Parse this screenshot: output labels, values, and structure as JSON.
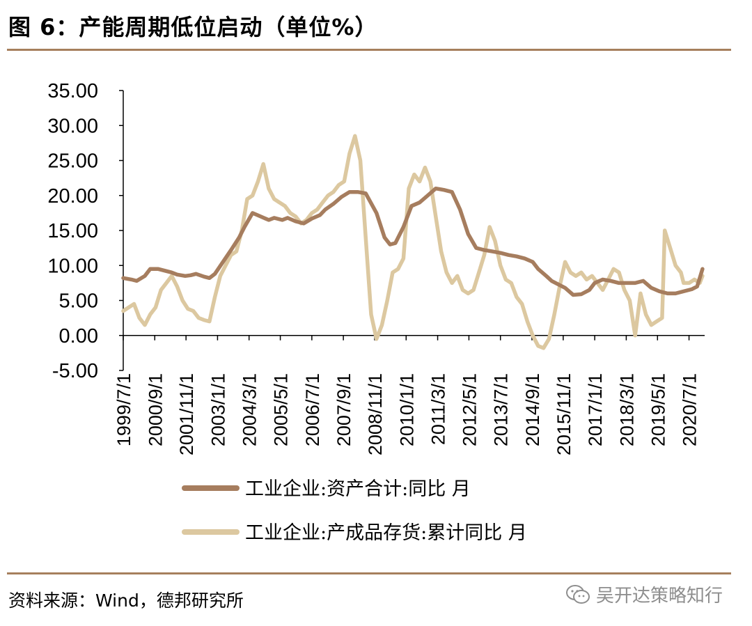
{
  "header": {
    "title": "图 6：产能周期低位启动（单位%）"
  },
  "footer": {
    "source": "资料来源：Wind，德邦研究所",
    "watermark": "吴开达策略知行",
    "watermark_icon": "wechat-icon"
  },
  "colors": {
    "rule": "#a67f5d",
    "series1": "#a67d5e",
    "series2": "#dcc8a0"
  },
  "chart_data": {
    "type": "line",
    "title": "产能周期低位启动（单位%）",
    "xlabel": "",
    "ylabel": "",
    "ylim": [
      -5,
      35
    ],
    "yticks": [
      "-5.00",
      "0.00",
      "5.00",
      "10.00",
      "15.00",
      "20.00",
      "25.00",
      "30.00",
      "35.00"
    ],
    "xlim": [
      1999.5,
      2021.08
    ],
    "xtick_labels": [
      "1999/7/1",
      "2000/9/1",
      "2001/11/1",
      "2003/1/1",
      "2004/3/1",
      "2005/5/1",
      "2006/7/1",
      "2007/9/1",
      "2008/11/1",
      "2010/1/1",
      "2011/3/1",
      "2012/5/1",
      "2013/7/1",
      "2014/9/1",
      "2015/11/1",
      "2017/1/1",
      "2018/3/1",
      "2019/5/1",
      "2020/7/1"
    ],
    "xtick_positions": [
      1999.5,
      2000.67,
      2001.83,
      2003.0,
      2004.17,
      2005.33,
      2006.5,
      2007.67,
      2008.83,
      2010.0,
      2011.17,
      2012.33,
      2013.5,
      2014.67,
      2015.83,
      2017.0,
      2018.17,
      2019.33,
      2020.5
    ],
    "series": [
      {
        "name": "工业企业:资产合计:同比 月",
        "x": [
          1999.5,
          1999.8,
          2000.0,
          2000.3,
          2000.5,
          2000.8,
          2001.0,
          2001.3,
          2001.5,
          2001.8,
          2002.0,
          2002.2,
          2002.5,
          2002.7,
          2002.9,
          2003.2,
          2003.5,
          2003.8,
          2004.0,
          2004.3,
          2004.6,
          2004.9,
          2005.1,
          2005.4,
          2005.6,
          2005.9,
          2006.2,
          2006.5,
          2006.8,
          2007.0,
          2007.3,
          2007.6,
          2007.9,
          2008.2,
          2008.5,
          2008.9,
          2009.2,
          2009.4,
          2009.6,
          2009.9,
          2010.2,
          2010.5,
          2010.8,
          2011.1,
          2011.4,
          2011.7,
          2012.0,
          2012.3,
          2012.6,
          2012.9,
          2013.2,
          2013.5,
          2013.8,
          2014.1,
          2014.4,
          2014.7,
          2014.9,
          2015.2,
          2015.4,
          2015.7,
          2015.9,
          2016.2,
          2016.5,
          2016.8,
          2017.0,
          2017.3,
          2017.6,
          2017.9,
          2018.2,
          2018.5,
          2018.8,
          2019.1,
          2019.4,
          2019.7,
          2020.0,
          2020.3,
          2020.6,
          2020.8,
          2021.0
        ],
        "values": [
          8.2,
          8.0,
          7.8,
          8.5,
          9.5,
          9.5,
          9.3,
          9.0,
          8.7,
          8.5,
          8.6,
          8.8,
          8.4,
          8.2,
          8.8,
          10.5,
          12.2,
          14.0,
          15.5,
          17.5,
          17.0,
          16.5,
          16.8,
          16.5,
          16.8,
          16.3,
          16.0,
          16.7,
          17.2,
          18.0,
          18.8,
          19.8,
          20.5,
          20.5,
          20.3,
          17.5,
          14.0,
          13.0,
          13.2,
          15.5,
          18.5,
          19.0,
          20.0,
          21.0,
          20.8,
          20.5,
          18.0,
          14.5,
          12.5,
          12.2,
          12.0,
          11.8,
          11.5,
          11.3,
          11.0,
          10.5,
          9.5,
          8.5,
          7.8,
          7.2,
          6.8,
          5.8,
          5.9,
          6.5,
          7.5,
          8.0,
          7.8,
          7.5,
          7.5,
          7.5,
          7.8,
          6.8,
          6.3,
          6.0,
          6.0,
          6.3,
          6.6,
          7.0,
          9.5
        ]
      },
      {
        "name": "工业企业:产成品存货:累计同比 月",
        "x": [
          1999.5,
          1999.7,
          1999.9,
          2000.1,
          2000.3,
          2000.5,
          2000.7,
          2000.9,
          2001.1,
          2001.3,
          2001.5,
          2001.7,
          2001.9,
          2002.1,
          2002.3,
          2002.5,
          2002.7,
          2002.9,
          2003.1,
          2003.3,
          2003.5,
          2003.7,
          2003.9,
          2004.1,
          2004.3,
          2004.5,
          2004.7,
          2004.9,
          2005.1,
          2005.3,
          2005.5,
          2005.7,
          2005.9,
          2006.1,
          2006.3,
          2006.5,
          2006.7,
          2006.9,
          2007.1,
          2007.3,
          2007.5,
          2007.7,
          2007.9,
          2008.1,
          2008.3,
          2008.5,
          2008.7,
          2008.9,
          2009.1,
          2009.3,
          2009.5,
          2009.7,
          2009.9,
          2010.1,
          2010.3,
          2010.5,
          2010.7,
          2010.9,
          2011.1,
          2011.3,
          2011.5,
          2011.7,
          2011.9,
          2012.1,
          2012.3,
          2012.5,
          2012.7,
          2012.9,
          2013.1,
          2013.3,
          2013.5,
          2013.7,
          2013.9,
          2014.1,
          2014.3,
          2014.5,
          2014.7,
          2014.9,
          2015.1,
          2015.3,
          2015.5,
          2015.7,
          2015.9,
          2016.1,
          2016.3,
          2016.5,
          2016.7,
          2016.9,
          2017.1,
          2017.3,
          2017.5,
          2017.7,
          2017.9,
          2018.1,
          2018.3,
          2018.5,
          2018.7,
          2018.9,
          2019.1,
          2019.3,
          2019.5,
          2019.6,
          2019.8,
          2020.0,
          2020.2,
          2020.3,
          2020.5,
          2020.7,
          2020.9,
          2021.0
        ],
        "values": [
          3.5,
          4.0,
          4.5,
          2.5,
          1.5,
          3.0,
          4.0,
          6.5,
          7.5,
          8.5,
          7.0,
          5.0,
          3.8,
          3.5,
          2.5,
          2.2,
          2.0,
          5.5,
          8.5,
          10.0,
          11.5,
          12.0,
          15.0,
          19.5,
          20.0,
          22.0,
          24.5,
          21.0,
          19.5,
          19.0,
          18.5,
          17.5,
          17.0,
          16.0,
          16.5,
          17.5,
          18.0,
          19.0,
          20.0,
          20.5,
          21.5,
          22.0,
          26.0,
          28.5,
          25.0,
          14.0,
          3.0,
          -0.5,
          1.5,
          5.0,
          9.0,
          9.5,
          11.0,
          21.0,
          23.0,
          22.0,
          24.0,
          22.0,
          17.0,
          12.0,
          9.0,
          7.5,
          8.5,
          6.5,
          6.0,
          6.5,
          9.0,
          11.5,
          15.5,
          13.5,
          10.0,
          8.0,
          7.5,
          5.5,
          4.5,
          2.0,
          0.0,
          -1.5,
          -1.8,
          -0.5,
          3.0,
          7.0,
          10.5,
          9.0,
          8.5,
          9.0,
          8.0,
          8.5,
          7.5,
          6.5,
          8.0,
          9.5,
          9.0,
          6.5,
          5.0,
          0.0,
          6.0,
          3.0,
          1.5,
          2.0,
          2.5,
          15.0,
          12.5,
          10.0,
          9.0,
          7.5,
          7.5,
          8.0,
          7.5,
          8.5
        ]
      }
    ],
    "legend": [
      {
        "label": "工业企业:资产合计:同比 月"
      },
      {
        "label": "工业企业:产成品存货:累计同比 月"
      }
    ],
    "legend_position": "bottom"
  }
}
